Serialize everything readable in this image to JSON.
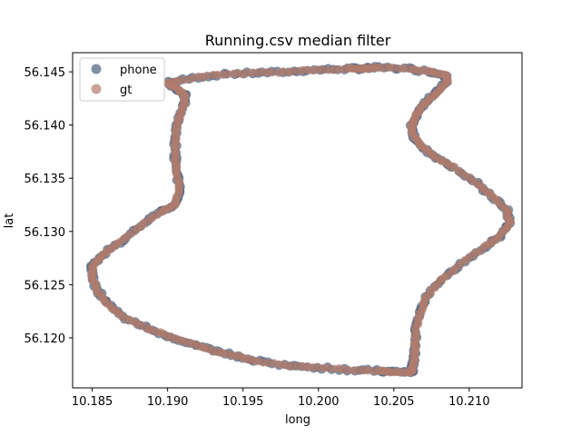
{
  "chart_data": {
    "type": "scatter",
    "title": "Running.csv median filter",
    "xlabel": "long",
    "ylabel": "lat",
    "xlim": [
      10.1837,
      10.2135
    ],
    "ylim": [
      56.1153,
      56.1468
    ],
    "xticks": [
      10.185,
      10.19,
      10.195,
      10.2,
      10.205,
      10.21
    ],
    "xtick_labels": [
      "10.185",
      "10.190",
      "10.195",
      "10.200",
      "10.205",
      "10.210"
    ],
    "yticks": [
      56.12,
      56.125,
      56.13,
      56.135,
      56.14,
      56.145
    ],
    "ytick_labels": [
      "56.120",
      "56.125",
      "56.130",
      "56.135",
      "56.140",
      "56.145"
    ],
    "grid": false,
    "legend_position": "top-left",
    "path": [
      [
        10.1902,
        56.144
      ],
      [
        10.192,
        56.1445
      ],
      [
        10.194,
        56.1448
      ],
      [
        10.196,
        56.1449
      ],
      [
        10.198,
        56.145
      ],
      [
        10.2,
        56.1452
      ],
      [
        10.202,
        56.1453
      ],
      [
        10.203,
        56.1453
      ],
      [
        10.204,
        56.1454
      ],
      [
        10.206,
        56.1453
      ],
      [
        10.2075,
        56.145
      ],
      [
        10.2085,
        56.1447
      ],
      [
        10.2085,
        56.144
      ],
      [
        10.2078,
        56.143
      ],
      [
        10.207,
        56.142
      ],
      [
        10.2065,
        56.141
      ],
      [
        10.2062,
        56.14
      ],
      [
        10.2063,
        56.139
      ],
      [
        10.2068,
        56.138
      ],
      [
        10.2078,
        56.137
      ],
      [
        10.209,
        56.136
      ],
      [
        10.2105,
        56.1345
      ],
      [
        10.2115,
        56.1333
      ],
      [
        10.2125,
        56.132
      ],
      [
        10.2127,
        56.1308
      ],
      [
        10.212,
        56.1295
      ],
      [
        10.211,
        56.1285
      ],
      [
        10.2095,
        56.127
      ],
      [
        10.2082,
        56.1255
      ],
      [
        10.2072,
        56.124
      ],
      [
        10.2068,
        56.1225
      ],
      [
        10.2065,
        56.121
      ],
      [
        10.2064,
        56.1195
      ],
      [
        10.2064,
        56.1185
      ],
      [
        10.2063,
        56.1175
      ],
      [
        10.2062,
        56.1168
      ],
      [
        10.205,
        56.1168
      ],
      [
        10.204,
        56.1169
      ],
      [
        10.202,
        56.117
      ],
      [
        10.2,
        56.1172
      ],
      [
        10.198,
        56.1174
      ],
      [
        10.196,
        56.1178
      ],
      [
        10.1945,
        56.1183
      ],
      [
        10.193,
        56.1188
      ],
      [
        10.1915,
        56.1195
      ],
      [
        10.19,
        56.1202
      ],
      [
        10.1885,
        56.121
      ],
      [
        10.187,
        56.122
      ],
      [
        10.186,
        56.1232
      ],
      [
        10.1853,
        56.1245
      ],
      [
        10.185,
        56.1258
      ],
      [
        10.185,
        56.1268
      ],
      [
        10.1857,
        56.1278
      ],
      [
        10.1868,
        56.129
      ],
      [
        10.1882,
        56.1305
      ],
      [
        10.1895,
        56.1318
      ],
      [
        10.1905,
        56.1325
      ],
      [
        10.1908,
        56.134
      ],
      [
        10.1906,
        56.1355
      ],
      [
        10.1905,
        56.137
      ],
      [
        10.1905,
        56.1385
      ],
      [
        10.1906,
        56.14
      ],
      [
        10.191,
        56.1415
      ],
      [
        10.1912,
        56.1428
      ],
      [
        10.1905,
        56.1435
      ],
      [
        10.19,
        56.144
      ]
    ],
    "series": [
      {
        "name": "phone",
        "color": "#4a6280"
      },
      {
        "name": "gt",
        "color": "#b07c6c"
      }
    ]
  }
}
